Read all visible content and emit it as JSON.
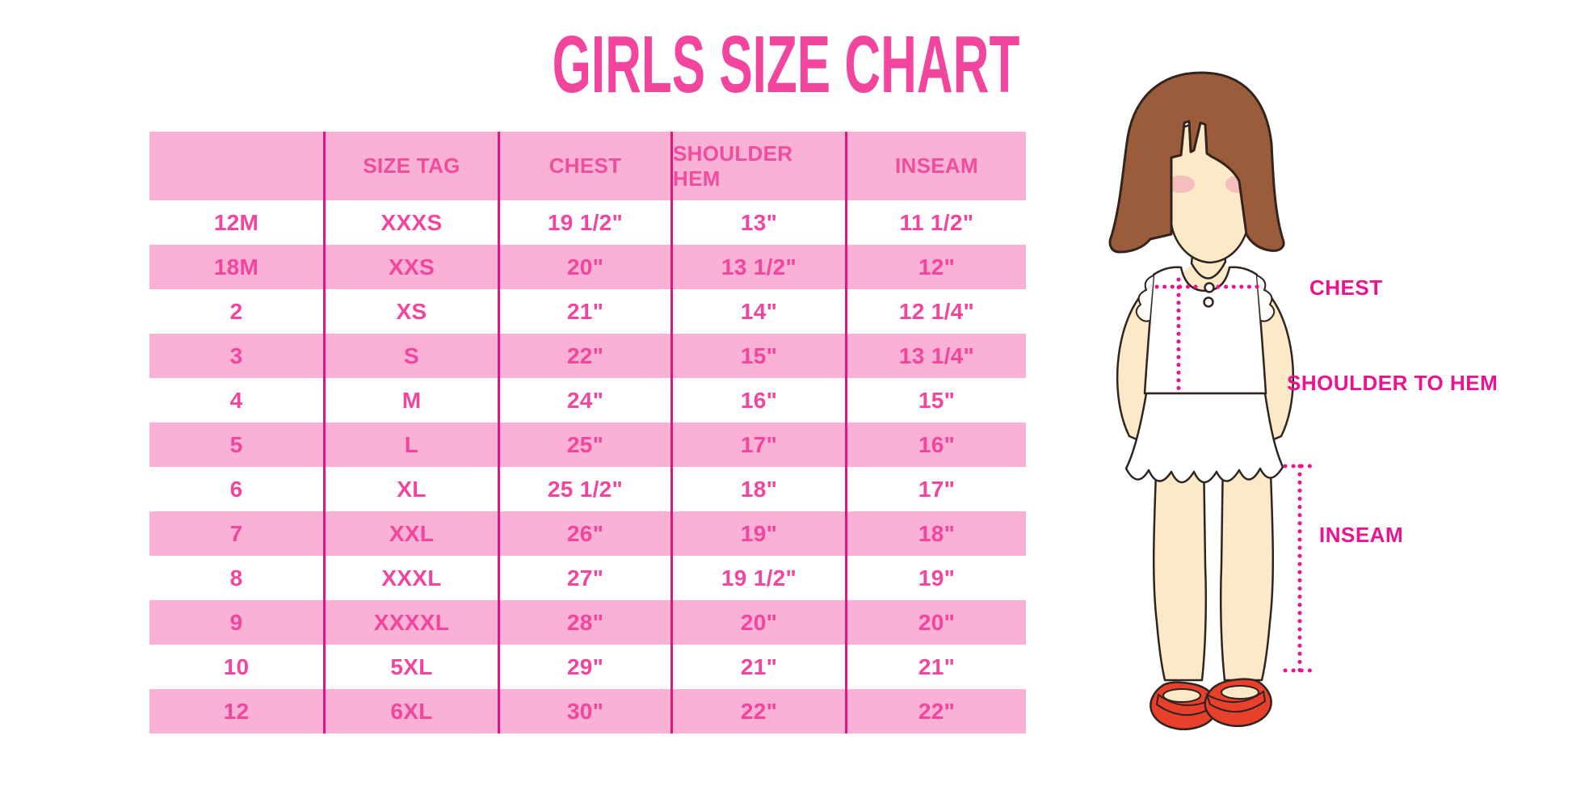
{
  "title": "GIRLS SIZE CHART",
  "chart_data": {
    "type": "table",
    "title": "GIRLS SIZE CHART",
    "columns": [
      "",
      "SIZE TAG",
      "CHEST",
      "SHOULDER HEM",
      "INSEAM"
    ],
    "rows": [
      [
        "12M",
        "XXXS",
        "19 1/2\"",
        "13\"",
        "11 1/2\""
      ],
      [
        "18M",
        "XXS",
        "20\"",
        "13 1/2\"",
        "12\""
      ],
      [
        "2",
        "XS",
        "21\"",
        "14\"",
        "12 1/4\""
      ],
      [
        "3",
        "S",
        "22\"",
        "15\"",
        "13 1/4\""
      ],
      [
        "4",
        "M",
        "24\"",
        "16\"",
        "15\""
      ],
      [
        "5",
        "L",
        "25\"",
        "17\"",
        "16\""
      ],
      [
        "6",
        "XL",
        "25 1/2\"",
        "18\"",
        "17\""
      ],
      [
        "7",
        "XXL",
        "26\"",
        "19\"",
        "18\""
      ],
      [
        "8",
        "XXXL",
        "27\"",
        "19 1/2\"",
        "19\""
      ],
      [
        "9",
        "XXXXL",
        "28\"",
        "20\"",
        "20\""
      ],
      [
        "10",
        "5XL",
        "29\"",
        "21\"",
        "21\""
      ],
      [
        "12",
        "6XL",
        "30\"",
        "22\"",
        "22\""
      ]
    ],
    "row_striping": "alternating white/pink starting with white",
    "layout": "grid with vertical pink separator lines between columns, no outer border"
  },
  "figure": {
    "description": "illustration of girl with brown bob hair, white sleeveless dress, red shoes, with dotted measurement guide lines",
    "labels": {
      "chest": "CHEST",
      "shoulder_to_hem": "SHOULDER TO HEM",
      "inseam": "INSEAM"
    }
  },
  "colors": {
    "title_pink": "#F2459E",
    "table_row_pink": "#FBB0D5",
    "table_text_pink": "#F2459E",
    "column_line_pink": "#DE1583",
    "label_magenta": "#EC1390",
    "dotted_line_magenta": "#EC1390",
    "hair_brown": "#9A5C3B",
    "skin": "#FBE9C8",
    "blush": "#F4A9BA",
    "shoe_red": "#E9402B",
    "background": "#FFFFFF"
  }
}
